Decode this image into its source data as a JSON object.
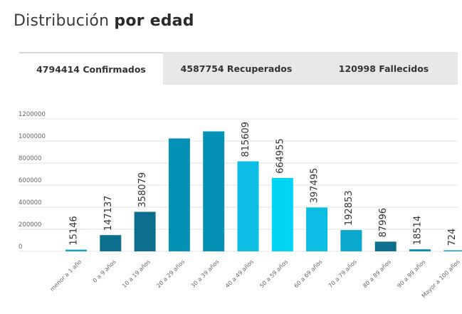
{
  "title": {
    "prefix": "Distribución",
    "bold": "por edad"
  },
  "tabs": [
    {
      "label": "4794414 Confirmados",
      "active": true
    },
    {
      "label": "4587754 Recuperados",
      "active": false
    },
    {
      "label": "120998 Fallecidos",
      "active": false
    }
  ],
  "chart_data": {
    "type": "bar",
    "categories": [
      "menor a 1 año",
      "0 a 9 años",
      "10 a 19 años",
      "20 a 29 años",
      "30 a 39 años",
      "40 a 49 años",
      "50 a 59 años",
      "60 a 69 años",
      "70 a 79 años",
      "80 a 89 años",
      "90 a 99 años",
      "Mayor a 100 años"
    ],
    "values": [
      15146,
      147137,
      358079,
      1023000,
      1087000,
      815609,
      664955,
      397495,
      192853,
      87996,
      18514,
      724
    ],
    "value_labels": [
      "15146",
      "147137",
      "358079",
      "",
      "",
      "815609",
      "664955",
      "397495",
      "192853",
      "87996",
      "18514",
      "724"
    ],
    "yticks": [
      0,
      200000,
      400000,
      600000,
      800000,
      1000000,
      1200000
    ],
    "ytick_labels": [
      "0",
      "200000",
      "400000",
      "600000",
      "800000",
      "1000000",
      "1200000"
    ],
    "ylim": [
      0,
      1200000
    ],
    "grid": true,
    "bar_colors": [
      "#0aa3c9",
      "#0d6f8e",
      "#0d6f8e",
      "#0591b5",
      "#0591b5",
      "#0bbde3",
      "#00d4f5",
      "#0bbde3",
      "#0aa8cc",
      "#0d6f8e",
      "#0591b5",
      "#0aa3c9"
    ]
  }
}
